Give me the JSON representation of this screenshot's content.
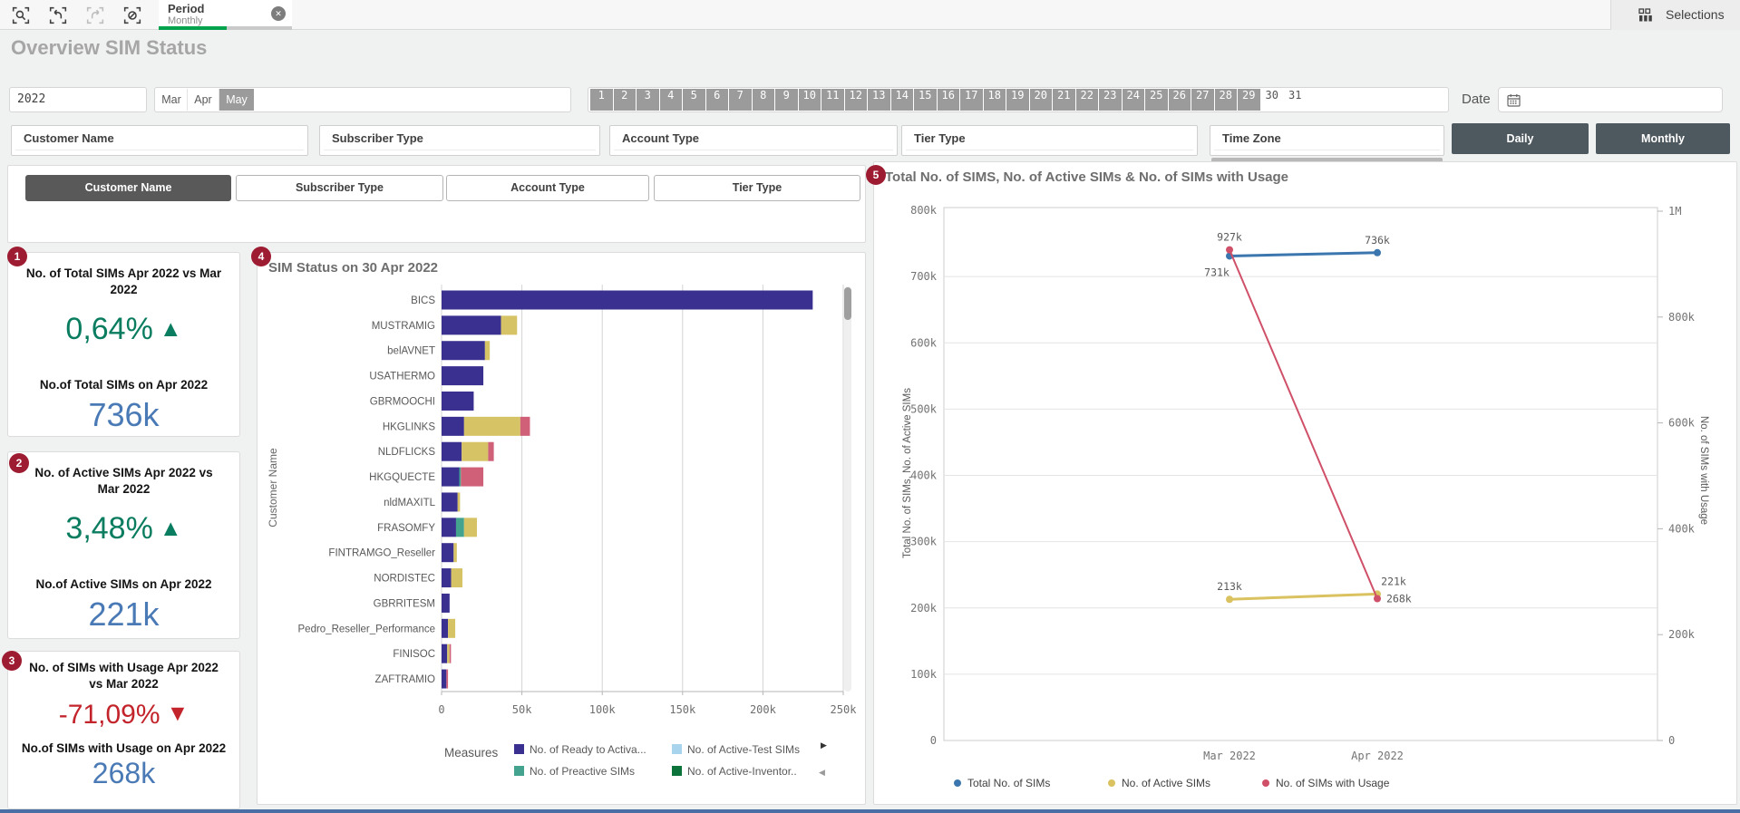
{
  "toolbar": {
    "tab": {
      "title": "Period",
      "subtitle": "Monthly"
    },
    "selections_label": "Selections"
  },
  "page_title": "Overview SIM Status",
  "filters": {
    "year_value": "2022",
    "months": [
      {
        "label": "Mar",
        "state": "white"
      },
      {
        "label": "Apr",
        "state": "white"
      },
      {
        "label": "May",
        "state": "gray"
      }
    ],
    "days": {
      "labels": [
        "1",
        "2",
        "3",
        "4",
        "5",
        "6",
        "7",
        "8",
        "9",
        "10",
        "11",
        "12",
        "13",
        "14",
        "15",
        "16",
        "17",
        "18",
        "19",
        "20",
        "21",
        "22",
        "23",
        "24",
        "25",
        "26",
        "27",
        "28",
        "29",
        "30",
        "31"
      ],
      "gray_through": 29
    },
    "date_label": "Date",
    "listbox_titles": [
      "Customer Name",
      "Subscriber Type",
      "Account Type",
      "Tier Type",
      "Time Zone"
    ],
    "view_buttons": [
      "Daily",
      "Monthly"
    ]
  },
  "dimension_selector": {
    "buttons": [
      "Customer Name",
      "Subscriber Type",
      "Account Type",
      "Tier Type"
    ],
    "selected": "Customer Name"
  },
  "badges": [
    "1",
    "2",
    "3",
    "4",
    "5"
  ],
  "kpis": [
    {
      "title": "No. of Total SIMs Apr 2022 vs Mar 2022",
      "change": "0,64%",
      "arrow": "▲",
      "direction": "up",
      "subtitle": "No.of Total SIMs on Apr 2022",
      "value": "736k"
    },
    {
      "title": "No. of Active SIMs Apr 2022 vs Mar 2022",
      "change": "3,48%",
      "arrow": "▲",
      "direction": "up",
      "subtitle": "No.of Active SIMs on Apr 2022",
      "value": "221k"
    },
    {
      "title": "No. of SIMs with Usage Apr 2022 vs Mar 2022",
      "change": "-71,09%",
      "arrow": "▼",
      "direction": "down",
      "subtitle": "No.of SIMs with Usage on Apr 2022",
      "value": "268k"
    }
  ],
  "colors": {
    "accent_green": "#0a7c5f",
    "accent_red": "#c3242b",
    "value_blue": "#4a7ab5",
    "badge_red": "#9d1c31",
    "tab_green": "#00a24b",
    "selected_gray": "#595959",
    "toggle_slate": "#4d585f",
    "token_gray": "#9b9b9b",
    "bar_indigo": "#39308f",
    "bar_teal": "#43a38f",
    "bar_yellow": "#d6c366",
    "bar_pink": "#cf6078",
    "legend_lightblue": "#a8d4ee",
    "legend_darkgreen": "#0c743b",
    "line_blue": "#3c76ae",
    "line_yellow": "#d9c25f",
    "line_red": "#cf5068"
  },
  "chart_data": [
    {
      "type": "bar",
      "orientation": "horizontal",
      "title": "SIM Status on 30 Apr 2022",
      "ylabel": "Customer Name",
      "xlabel": "",
      "xlim": [
        0,
        250000
      ],
      "xticks": [
        "0",
        "50k",
        "100k",
        "150k",
        "200k",
        "250k"
      ],
      "grid": true,
      "categories": [
        "BICS",
        "MUSTRAMIG",
        "belAVNET",
        "USATHERMO",
        "GBRMOOCHI",
        "HKGLINKS",
        "NLDFLICKS",
        "HKGQUECTE",
        "nldMAXITL",
        "FRASOMFY",
        "FINTRAMGO_Reseller",
        "NORDISTEC",
        "GBRRITESM",
        "Pedro_Reseller_Performance",
        "FINISOC",
        "ZAFTRAMIO"
      ],
      "series": [
        {
          "name": "indigo",
          "color_key": "bar_indigo",
          "values": [
            231000,
            37000,
            27000,
            26000,
            20000,
            14000,
            12500,
            11000,
            10000,
            9000,
            7500,
            6000,
            5000,
            4000,
            3500,
            3000
          ]
        },
        {
          "name": "teal",
          "color_key": "bar_teal",
          "values": [
            0,
            0,
            0,
            0,
            0,
            0,
            0,
            1000,
            0,
            5000,
            0,
            0,
            0,
            0,
            0,
            0
          ]
        },
        {
          "name": "yellow",
          "color_key": "bar_yellow",
          "values": [
            0,
            10000,
            3000,
            0,
            0,
            35000,
            16500,
            0,
            1500,
            8000,
            2000,
            7000,
            0,
            4500,
            1500,
            0
          ]
        },
        {
          "name": "pink",
          "color_key": "bar_pink",
          "values": [
            0,
            0,
            0,
            0,
            0,
            6000,
            3500,
            14000,
            0,
            0,
            0,
            0,
            0,
            0,
            500,
            1000
          ]
        }
      ],
      "legend": {
        "label": "Measures",
        "entries": [
          {
            "label": "No. of Ready to Activa...",
            "color_key": "bar_indigo"
          },
          {
            "label": "No. of Active-Test SIMs",
            "color_key": "legend_lightblue"
          },
          {
            "label": "No. of Preactive SIMs",
            "color_key": "bar_teal"
          },
          {
            "label": "No. of Active-Inventor..",
            "color_key": "legend_darkgreen"
          }
        ]
      }
    },
    {
      "type": "line",
      "title": "Total No. of SIMS, No. of Active SIMs & No. of SIMs with Usage",
      "x_categories": [
        "Mar 2022",
        "Apr 2022"
      ],
      "left_axis": {
        "label": "Total No. of SIMs, No. of Active SIMs",
        "ticks": [
          "800k",
          "700k",
          "600k",
          "500k",
          "400k",
          "300k",
          "200k",
          "100k",
          "0"
        ],
        "max": 800000
      },
      "right_axis": {
        "label": "No. of SIMs with Usage",
        "ticks": [
          "1M",
          "800k",
          "600k",
          "400k",
          "200k",
          "0"
        ],
        "max": 1000000
      },
      "grid": true,
      "series": [
        {
          "name": "Total No. of SIMs",
          "axis": "left",
          "color_key": "line_blue",
          "values": [
            731000,
            736000
          ],
          "point_labels": [
            "731k",
            "736k"
          ]
        },
        {
          "name": "No. of Active SIMs",
          "axis": "left",
          "color_key": "line_yellow",
          "values": [
            213000,
            221000
          ],
          "point_labels": [
            "213k",
            "221k"
          ]
        },
        {
          "name": "No. of SIMs with Usage",
          "axis": "right",
          "color_key": "line_red",
          "values": [
            927000,
            268000
          ],
          "point_labels": [
            "927k",
            "268k"
          ]
        }
      ],
      "legend": [
        "Total No. of SIMs",
        "No. of Active SIMs",
        "No. of SIMs with Usage"
      ]
    }
  ]
}
